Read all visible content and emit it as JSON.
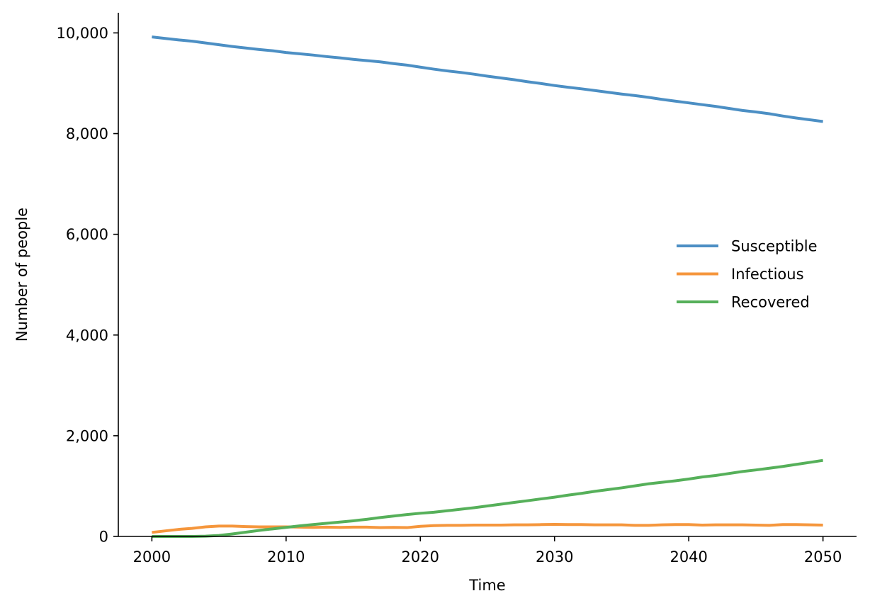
{
  "chart_data": {
    "type": "line",
    "xlabel": "Time",
    "ylabel": "Number of people",
    "xlim": [
      1997.5,
      2052.5
    ],
    "ylim": [
      0,
      10400
    ],
    "x_ticks": [
      2000,
      2010,
      2020,
      2030,
      2040,
      2050
    ],
    "x_tick_labels": [
      "2000",
      "2010",
      "2020",
      "2030",
      "2040",
      "2050"
    ],
    "y_ticks": [
      0,
      2000,
      4000,
      6000,
      8000,
      10000
    ],
    "y_tick_labels": [
      "0",
      "2,000",
      "4,000",
      "6,000",
      "8,000",
      "10,000"
    ],
    "grid": false,
    "legend_position": "center-right",
    "x": [
      2000,
      2001,
      2002,
      2003,
      2004,
      2005,
      2006,
      2007,
      2008,
      2009,
      2010,
      2011,
      2012,
      2013,
      2014,
      2015,
      2016,
      2017,
      2018,
      2019,
      2020,
      2021,
      2022,
      2023,
      2024,
      2025,
      2026,
      2027,
      2028,
      2029,
      2030,
      2031,
      2032,
      2033,
      2034,
      2035,
      2036,
      2037,
      2038,
      2039,
      2040,
      2041,
      2042,
      2043,
      2044,
      2045,
      2046,
      2047,
      2048,
      2049,
      2050
    ],
    "series": [
      {
        "name": "Susceptible",
        "color": "#4c8fc4",
        "values": [
          9920,
          9890,
          9860,
          9835,
          9800,
          9765,
          9730,
          9700,
          9670,
          9645,
          9610,
          9585,
          9560,
          9530,
          9505,
          9475,
          9450,
          9425,
          9390,
          9360,
          9320,
          9280,
          9245,
          9215,
          9180,
          9140,
          9105,
          9070,
          9030,
          8995,
          8955,
          8920,
          8890,
          8855,
          8820,
          8785,
          8755,
          8720,
          8680,
          8645,
          8610,
          8575,
          8540,
          8500,
          8460,
          8430,
          8395,
          8350,
          8310,
          8275,
          8240
        ]
      },
      {
        "name": "Infectious",
        "color": "#f5963c",
        "values": [
          80,
          110,
          140,
          160,
          190,
          205,
          205,
          195,
          190,
          190,
          190,
          185,
          180,
          185,
          180,
          185,
          185,
          175,
          180,
          175,
          200,
          215,
          220,
          220,
          225,
          225,
          225,
          230,
          230,
          235,
          240,
          235,
          235,
          230,
          230,
          230,
          220,
          220,
          230,
          235,
          235,
          225,
          230,
          230,
          230,
          225,
          220,
          235,
          235,
          230,
          225
        ]
      },
      {
        "name": "Recovered",
        "color": "#56b05a",
        "values": [
          0,
          0,
          0,
          0,
          5,
          20,
          50,
          85,
          120,
          150,
          180,
          210,
          235,
          260,
          285,
          310,
          340,
          375,
          405,
          435,
          460,
          480,
          510,
          540,
          570,
          605,
          640,
          675,
          710,
          745,
          780,
          820,
          855,
          895,
          930,
          965,
          1005,
          1045,
          1075,
          1105,
          1140,
          1180,
          1210,
          1250,
          1290,
          1320,
          1355,
          1390,
          1430,
          1470,
          1510
        ]
      }
    ]
  }
}
